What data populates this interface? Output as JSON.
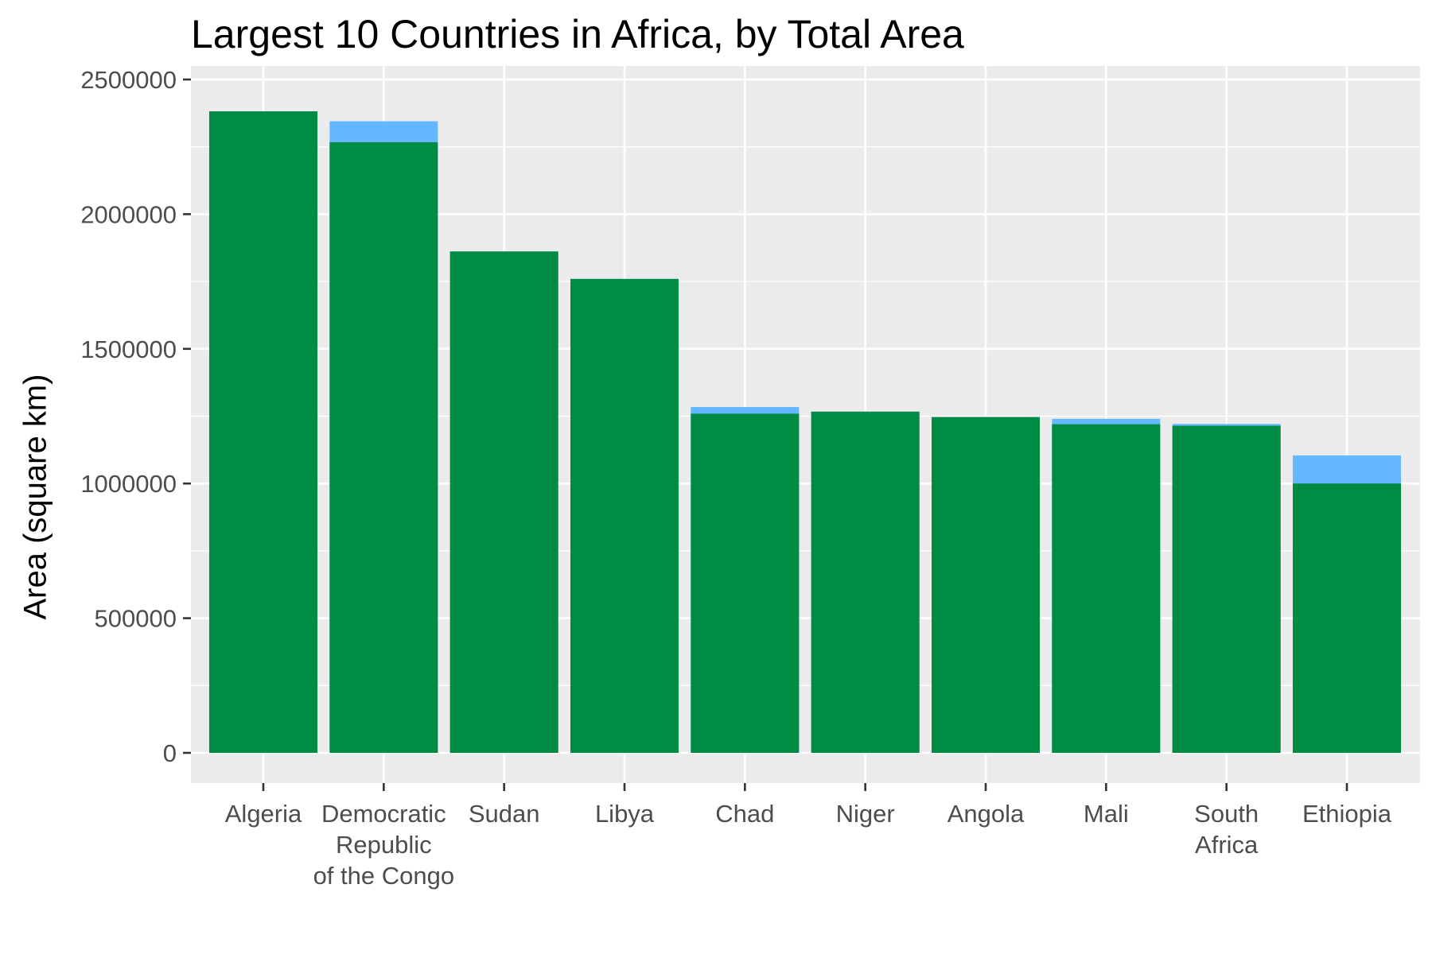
{
  "chart_data": {
    "type": "bar",
    "title": "Largest 10 Countries in Africa, by Total Area",
    "xlabel": "",
    "ylabel": "Area (square km)",
    "ylim": [
      -100000,
      2500000
    ],
    "yticks": [
      0,
      500000,
      1000000,
      1500000,
      2000000,
      2500000
    ],
    "ytick_labels": [
      "0",
      "500000",
      "1000000",
      "1500000",
      "2000000",
      "2500000"
    ],
    "grid": true,
    "categories": [
      [
        "Algeria"
      ],
      [
        "Democratic",
        "Republic",
        "of the Congo"
      ],
      [
        "Sudan"
      ],
      [
        "Libya"
      ],
      [
        "Chad"
      ],
      [
        "Niger"
      ],
      [
        "Angola"
      ],
      [
        "Mali"
      ],
      [
        "South",
        "Africa"
      ],
      [
        "Ethiopia"
      ]
    ],
    "series": [
      {
        "values": [
          2381741,
          2344858,
          1861484,
          1759540,
          1284000,
          1267000,
          1246700,
          1240192,
          1221037,
          1104300
        ],
        "color": "#63b8ff"
      },
      {
        "values": [
          2381741,
          2267048,
          1861484,
          1759540,
          1259200,
          1266700,
          1246700,
          1220190,
          1214470,
          1000000
        ],
        "color": "#008b45"
      }
    ],
    "colors": {
      "panel_background": "#ebebeb",
      "grid": "#ffffff",
      "axis_text": "#4d4d4d"
    }
  }
}
